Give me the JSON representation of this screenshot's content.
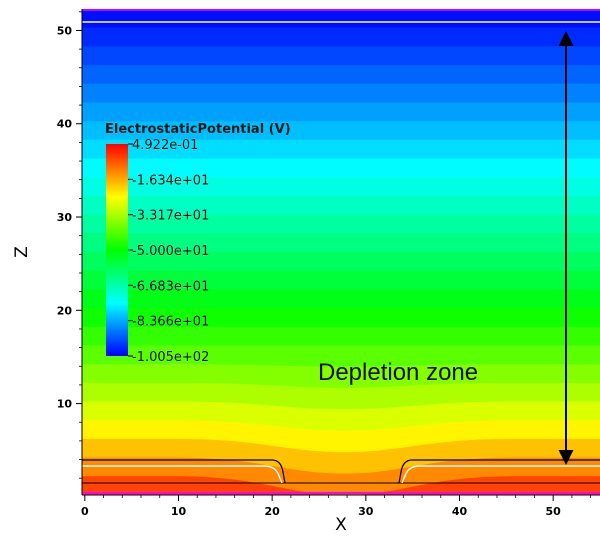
{
  "chart_data": {
    "type": "heatmap",
    "title": "",
    "xlabel": "X",
    "ylabel": "Z",
    "xlim": [
      -0.3,
      55
    ],
    "ylim": [
      0.2,
      52.3
    ],
    "x_ticks": [
      0,
      10,
      20,
      30,
      40,
      50
    ],
    "y_ticks": [
      10,
      20,
      30,
      40,
      50
    ],
    "grid": false,
    "colorbar": {
      "title": "ElectrostaticPotential (V)",
      "labels": [
        "4.922e-01",
        "-1.634e+01",
        "-3.317e+01",
        "-5.000e+01",
        "-6.683e+01",
        "-8.366e+01",
        "-1.005e+02"
      ],
      "values": [
        0.4922,
        -16.34,
        -33.17,
        -50.0,
        -66.83,
        -83.66,
        -100.5
      ],
      "colormap": [
        "#0000ff",
        "#00ffff",
        "#00ff00",
        "#ffff00",
        "#ff0000"
      ],
      "placement": "left"
    },
    "field": {
      "variable": "ElectrostaticPotential (V)",
      "z_top": 52.3,
      "value_top": -100.5,
      "value_bottom": 0.4922,
      "bump_center_x": 27.7
    },
    "annotations": [
      {
        "text": "Depletion zone",
        "arrow_x": 51.5,
        "arrow_z_from": 3.5,
        "arrow_z_to": 49.3
      }
    ]
  }
}
